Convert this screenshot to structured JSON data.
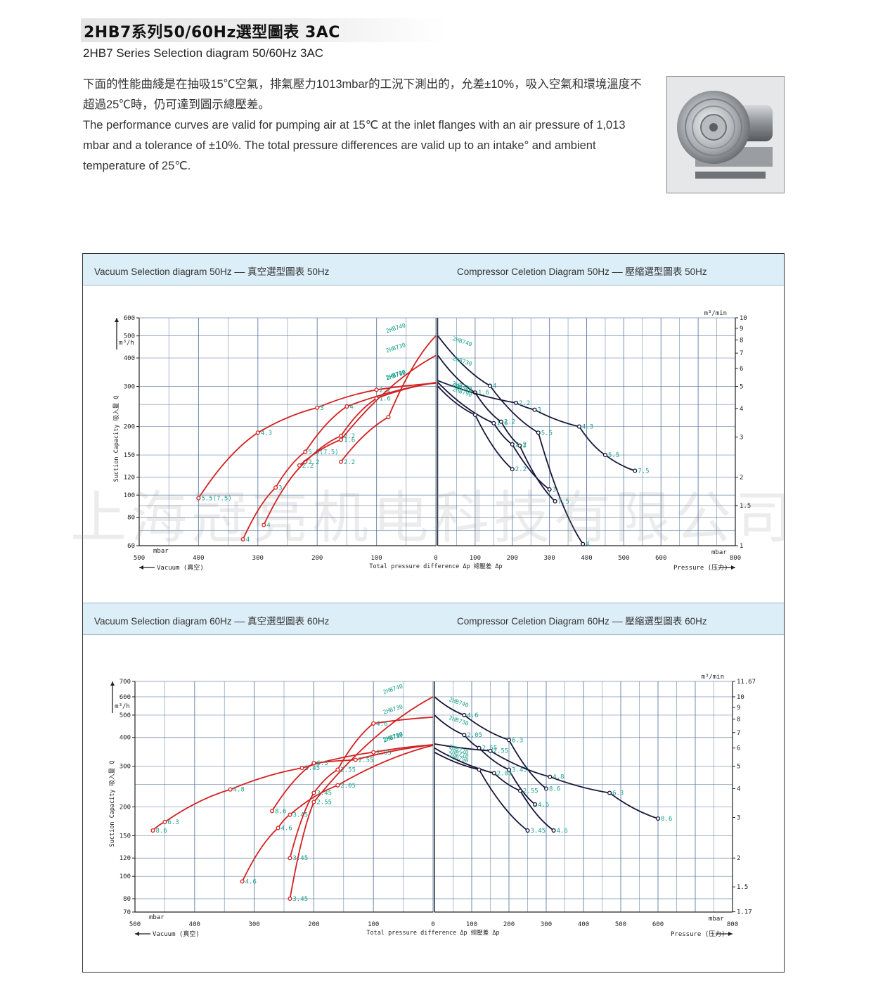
{
  "header": {
    "title": "2HB7系列50/60Hz選型圖表 3AC",
    "subtitle": "2HB7 Series Selection diagram 50/60Hz 3AC",
    "desc_cn": "下面的性能曲綫是在抽吸15℃空氣，排氣壓力1013mbar的工況下測出的，允差±10%，吸入空氣和環境溫度不超過25℃時，仍可達到圖示總壓差。",
    "desc_en": "The performance curves are valid for pumping air at 15℃ at the inlet flanges with an air pressure of 1,013 mbar and a tolerance of ±10%. The total pressure differences are valid up to an intake° and ambient temperature of 25℃."
  },
  "watermark": "上海冠亮机电科技有限公司",
  "colors": {
    "vacuum": "#d42020",
    "compressor": "#16163a",
    "label": "#1aa08c",
    "grid": "#4f6f9a",
    "band": "#dceef8"
  },
  "chart_data": [
    {
      "type": "line",
      "band_left": "Vacuum Selection diagram 50Hz –– 真空選型圖表 50Hz",
      "band_right": "Compressor Celetion Diagram 50Hz –– 壓縮選型圖表 50Hz",
      "left_ticks": [
        "600",
        "500",
        "400",
        "300",
        "200",
        "150",
        "120",
        "100",
        "80",
        "60"
      ],
      "right_ticks": [
        "10",
        "9",
        "8",
        "7",
        "6",
        "5",
        "4",
        "3",
        "2",
        "1.5",
        "1"
      ],
      "vac_ticks": [
        "500",
        "400",
        "300",
        "200",
        "100",
        "0"
      ],
      "comp_ticks": [
        "100",
        "200",
        "300",
        "400",
        "500",
        "600",
        "800"
      ],
      "ylabel": "Suction Capacity 吸入量 Q",
      "yunit": "m³/h",
      "right_unit": "m³/min",
      "xlabel": "Total pressure difference Δp 總壓差 Δp",
      "vac_label": "Vacuum (真空)",
      "comp_label": "Pressure (压力)",
      "mbar": "mbar",
      "ylim": [
        60,
        600
      ],
      "vacuum_series": [
        {
          "name": "2HB790",
          "points": [
            [
              400,
              97
            ],
            [
              300,
              188
            ],
            [
              200,
              242
            ],
            [
              100,
              290
            ],
            [
              0,
              310
            ]
          ],
          "labels": [
            "5.5(7.5)",
            "4.3",
            "3",
            "2.2",
            ""
          ]
        },
        {
          "name": "2HB710",
          "points": [
            [
              325,
              64
            ],
            [
              270,
              108
            ],
            [
              220,
              155
            ],
            [
              150,
              245
            ],
            [
              0,
              312
            ]
          ],
          "labels": [
            "4",
            "3",
            "5.5(7.5)",
            "4",
            ""
          ]
        },
        {
          "name": "2HB720",
          "points": [
            [
              290,
              74
            ],
            [
              220,
              140
            ],
            [
              160,
              182
            ],
            [
              100,
              266
            ],
            [
              0,
              312
            ]
          ],
          "labels": [
            "4",
            "2.2",
            "2.2",
            "1.6",
            ""
          ]
        },
        {
          "name": "2HB730",
          "points": [
            [
              230,
              135
            ],
            [
              160,
              175
            ],
            [
              0,
              410
            ]
          ],
          "labels": [
            "2.2",
            "1.6",
            ""
          ]
        },
        {
          "name": "2HB740",
          "points": [
            [
              160,
              140
            ],
            [
              80,
              220
            ],
            [
              0,
              500
            ]
          ],
          "labels": [
            "2.2",
            "",
            ""
          ]
        }
      ],
      "compressor_series": [
        {
          "name": "2HB740",
          "points": [
            [
              0,
              500
            ],
            [
              140,
              302
            ],
            [
              270,
              188
            ],
            [
              390,
              61
            ]
          ],
          "labels": [
            "",
            "4",
            "5.5",
            "4"
          ]
        },
        {
          "name": "2HB730",
          "points": [
            [
              0,
              410
            ],
            [
              100,
              282
            ],
            [
              170,
              210
            ],
            [
              220,
              165
            ],
            [
              315,
              94
            ]
          ],
          "labels": [
            "",
            "1.6",
            "2.2",
            "3",
            "7.5"
          ]
        },
        {
          "name": "2HB720",
          "points": [
            [
              0,
              318
            ],
            [
              210,
              254
            ],
            [
              260,
              237
            ],
            [
              380,
              200
            ],
            [
              450,
              150
            ],
            [
              530,
              128
            ]
          ],
          "labels": [
            "",
            "2.2",
            "3",
            "4.3",
            "5.5",
            "7.5"
          ]
        },
        {
          "name": "2HB710",
          "points": [
            [
              0,
              312
            ],
            [
              150,
              207
            ],
            [
              200,
              167
            ],
            [
              300,
              106
            ]
          ],
          "labels": [
            "",
            "1.6",
            "2.2",
            "3"
          ]
        },
        {
          "name": "2HB790",
          "points": [
            [
              0,
              300
            ],
            [
              100,
              225
            ],
            [
              200,
              130
            ]
          ],
          "labels": [
            "",
            "",
            "2.2"
          ]
        }
      ]
    },
    {
      "type": "line",
      "band_left": "Vacuum Selection diagram 60Hz –– 真空選型圖表 60Hz",
      "band_right": "Compressor Celetion Diagram 60Hz –– 壓縮選型圖表 60Hz",
      "left_ticks": [
        "700",
        "600",
        "500",
        "400",
        "300",
        "200",
        "150",
        "120",
        "100",
        "80",
        "70"
      ],
      "right_ticks": [
        "11.67",
        "10",
        "9",
        "8",
        "7",
        "6",
        "5",
        "4",
        "3",
        "2",
        "1.5",
        "1.17"
      ],
      "vac_ticks": [
        "500",
        "400",
        "300",
        "200",
        "100",
        "0"
      ],
      "comp_ticks": [
        "100",
        "200",
        "300",
        "400",
        "500",
        "600",
        "800"
      ],
      "ylabel": "Suction Capacity 吸入量 Q",
      "yunit": "m³/h",
      "right_unit": "m³/min",
      "xlabel": "Total pressure difference Δp 總壓差 Δp",
      "vac_label": "Vacuum (真空)",
      "comp_label": "Pressure (压力)",
      "mbar": "mbar",
      "ylim": [
        70,
        700
      ],
      "vacuum_series": [
        {
          "name": "2HB790",
          "points": [
            [
              470,
              158
            ],
            [
              450,
              172
            ],
            [
              340,
              238
            ],
            [
              220,
              295
            ],
            [
              100,
              345
            ],
            [
              0,
              372
            ]
          ],
          "labels": [
            "8.6",
            "6.3",
            "4.8",
            "3.45",
            "2.05",
            ""
          ]
        },
        {
          "name": "2HB710",
          "points": [
            [
              320,
              95
            ],
            [
              260,
              162
            ],
            [
              240,
              185
            ],
            [
              160,
              248
            ],
            [
              0,
              370
            ]
          ],
          "labels": [
            "4.6",
            "4.6",
            "3.45",
            "2.05",
            ""
          ]
        },
        {
          "name": "2HB720",
          "points": [
            [
              270,
              192
            ],
            [
              200,
              310
            ],
            [
              130,
              320
            ],
            [
              0,
              372
            ]
          ],
          "labels": [
            "8.6",
            "6.3",
            "2.55",
            ""
          ]
        },
        {
          "name": "2HB730",
          "points": [
            [
              240,
              120
            ],
            [
              200,
              230
            ],
            [
              160,
              290
            ],
            [
              100,
              460
            ],
            [
              0,
              490
            ]
          ],
          "labels": [
            "3.45",
            "3.45",
            "2.55",
            "4.6",
            ""
          ]
        },
        {
          "name": "2HB740",
          "points": [
            [
              240,
              80
            ],
            [
              200,
              210
            ],
            [
              0,
              600
            ]
          ],
          "labels": [
            "3.45",
            "2.55",
            ""
          ]
        }
      ],
      "compressor_series": [
        {
          "name": "2HB740",
          "points": [
            [
              0,
              600
            ],
            [
              80,
              500
            ],
            [
              200,
              390
            ],
            [
              300,
              240
            ]
          ],
          "labels": [
            "",
            "4.6",
            "6.3",
            "8.6"
          ]
        },
        {
          "name": "2HB730",
          "points": [
            [
              0,
              500
            ],
            [
              80,
              410
            ],
            [
              120,
              360
            ],
            [
              200,
              290
            ],
            [
              270,
              205
            ]
          ],
          "labels": [
            "",
            "2.05",
            "2.55",
            "3.45",
            "4.6"
          ]
        },
        {
          "name": "2HB720",
          "points": [
            [
              0,
              375
            ],
            [
              150,
              350
            ],
            [
              310,
              270
            ],
            [
              470,
              230
            ],
            [
              600,
              178
            ]
          ],
          "labels": [
            "",
            "2.55",
            "4.8",
            "6.3",
            "8.6"
          ]
        },
        {
          "name": "2HB710",
          "points": [
            [
              0,
              360
            ],
            [
              160,
              280
            ],
            [
              230,
              235
            ],
            [
              320,
              158
            ]
          ],
          "labels": [
            "",
            "2.05",
            "2.55",
            "4.6"
          ]
        },
        {
          "name": "2HB790",
          "points": [
            [
              0,
              345
            ],
            [
              120,
              290
            ],
            [
              250,
              158
            ]
          ],
          "labels": [
            "",
            "",
            "3.45"
          ]
        }
      ]
    }
  ]
}
